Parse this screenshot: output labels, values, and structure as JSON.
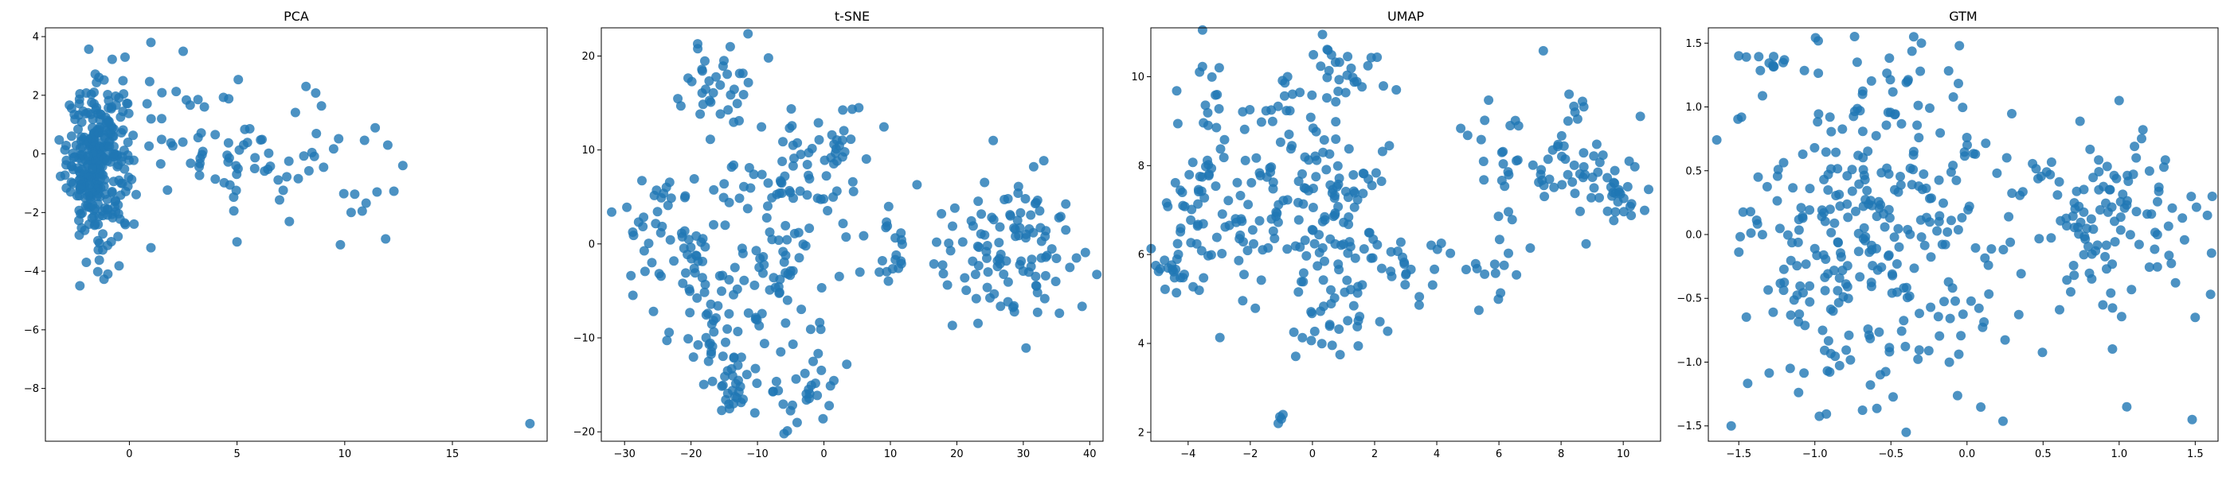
{
  "chart_data": [
    {
      "type": "scatter",
      "title": "PCA",
      "xlabel": "",
      "ylabel": "",
      "xlim": [
        -3.9,
        19.4
      ],
      "ylim": [
        -9.8,
        4.3
      ],
      "xticks": [
        0,
        5,
        10,
        15
      ],
      "yticks": [
        4,
        2,
        0,
        -2,
        -4,
        -6,
        -8
      ],
      "tick_labels_x": [
        "0",
        "5",
        "10",
        "15"
      ],
      "tick_labels_y": [
        "4",
        "2",
        "0",
        "−2",
        "−4",
        "−6",
        "−8"
      ],
      "color": "#1f77b4",
      "grid": false,
      "clusters": [
        {
          "cx": -1.5,
          "cy": -0.3,
          "sx": 0.7,
          "sy": 1.3,
          "n": 300
        },
        {
          "cx": 4.0,
          "cy": 0.5,
          "sx": 2.5,
          "sy": 1.0,
          "n": 70
        },
        {
          "cx": 8.0,
          "cy": -1.0,
          "sx": 2.0,
          "sy": 1.2,
          "n": 20
        }
      ],
      "points": [
        [
          -2.3,
          -4.5
        ],
        [
          -2.0,
          -3.7
        ],
        [
          18.6,
          -9.2
        ],
        [
          12.7,
          -0.4
        ],
        [
          12.0,
          0.3
        ],
        [
          11.9,
          -2.9
        ],
        [
          10.3,
          -2.0
        ],
        [
          9.8,
          -3.1
        ],
        [
          1.0,
          3.8
        ],
        [
          2.5,
          3.5
        ],
        [
          -0.2,
          3.3
        ],
        [
          -1.0,
          -4.1
        ],
        [
          5.0,
          -3.0
        ],
        [
          8.2,
          2.3
        ],
        [
          1.0,
          -3.2
        ]
      ]
    },
    {
      "type": "scatter",
      "title": "t-SNE",
      "xlabel": "",
      "ylabel": "",
      "xlim": [
        -33.5,
        42
      ],
      "ylim": [
        -21,
        23
      ],
      "xticks": [
        -30,
        -20,
        -10,
        0,
        10,
        20,
        30,
        40
      ],
      "yticks": [
        20,
        10,
        0,
        -10,
        -20
      ],
      "tick_labels_x": [
        "−30",
        "−20",
        "−10",
        "0",
        "10",
        "20",
        "30",
        "40"
      ],
      "tick_labels_y": [
        "20",
        "10",
        "0",
        "−10",
        "−20"
      ],
      "color": "#1f77b4",
      "grid": false,
      "clusters": [
        {
          "cx": -16,
          "cy": 17,
          "sx": 3.0,
          "sy": 2.5,
          "n": 35
        },
        {
          "cx": -5,
          "cy": 8,
          "sx": 4.0,
          "sy": 3.0,
          "n": 40
        },
        {
          "cx": 2,
          "cy": 10,
          "sx": 2.5,
          "sy": 3.0,
          "n": 25
        },
        {
          "cx": -22,
          "cy": 0,
          "sx": 4.5,
          "sy": 4.5,
          "n": 70
        },
        {
          "cx": -8,
          "cy": -2,
          "sx": 5.0,
          "sy": 4.5,
          "n": 70
        },
        {
          "cx": -17,
          "cy": -10,
          "sx": 3.0,
          "sy": 2.5,
          "n": 25
        },
        {
          "cx": -14,
          "cy": -15.5,
          "sx": 2.5,
          "sy": 1.3,
          "n": 25
        },
        {
          "cx": -4,
          "cy": -15,
          "sx": 3.0,
          "sy": 2.2,
          "n": 30
        },
        {
          "cx": 10,
          "cy": -1,
          "sx": 1.5,
          "sy": 2.0,
          "n": 20
        },
        {
          "cx": 28,
          "cy": 0,
          "sx": 5.5,
          "sy": 3.5,
          "n": 110
        }
      ],
      "points": [
        [
          -19,
          21.3
        ],
        [
          -6,
          -20.2
        ],
        [
          -5.5,
          -19.9
        ],
        [
          14,
          6.3
        ],
        [
          37,
          -2.5
        ],
        [
          38,
          -1.5
        ]
      ]
    },
    {
      "type": "scatter",
      "title": "UMAP",
      "xlabel": "",
      "ylabel": "",
      "xlim": [
        -5.2,
        11.2
      ],
      "ylim": [
        1.8,
        11.1
      ],
      "xticks": [
        -4,
        -2,
        0,
        2,
        4,
        6,
        8,
        10
      ],
      "yticks": [
        10,
        8,
        6,
        4,
        2
      ],
      "tick_labels_x": [
        "−4",
        "−2",
        "0",
        "2",
        "4",
        "6",
        "8",
        "10"
      ],
      "tick_labels_y": [
        "10",
        "8",
        "6",
        "4",
        "2"
      ],
      "color": "#1f77b4",
      "grid": false,
      "clusters": [
        {
          "cx": -3.5,
          "cy": 8.0,
          "sx": 0.6,
          "sy": 1.5,
          "n": 45
        },
        {
          "cx": -1.5,
          "cy": 7.0,
          "sx": 1.2,
          "sy": 1.3,
          "n": 90
        },
        {
          "cx": 0.5,
          "cy": 7.0,
          "sx": 1.0,
          "sy": 1.5,
          "n": 90
        },
        {
          "cx": 1.2,
          "cy": 9.9,
          "sx": 0.7,
          "sy": 0.4,
          "n": 25
        },
        {
          "cx": -4.5,
          "cy": 5.8,
          "sx": 0.3,
          "sy": 0.4,
          "n": 20
        },
        {
          "cx": 2.5,
          "cy": 5.6,
          "sx": 1.0,
          "sy": 0.5,
          "n": 25
        },
        {
          "cx": 0.5,
          "cy": 4.4,
          "sx": 0.5,
          "sy": 0.4,
          "n": 15
        },
        {
          "cx": 5.0,
          "cy": 5.8,
          "sx": 0.9,
          "sy": 0.5,
          "n": 20
        },
        {
          "cx": 7.5,
          "cy": 8.0,
          "sx": 1.4,
          "sy": 0.8,
          "n": 70
        },
        {
          "cx": 9.8,
          "cy": 7.5,
          "sx": 0.5,
          "sy": 0.4,
          "n": 25
        }
      ],
      "points": [
        [
          -1.1,
          2.2
        ],
        [
          -1.0,
          2.3
        ],
        [
          -0.95,
          2.4
        ],
        [
          -1.05,
          2.35
        ],
        [
          -3.0,
          10.2
        ],
        [
          -0.8,
          10.0
        ],
        [
          0.5,
          10.6
        ]
      ]
    },
    {
      "type": "scatter",
      "title": "GTM",
      "xlabel": "",
      "ylabel": "",
      "xlim": [
        -1.7,
        1.65
      ],
      "ylim": [
        -1.62,
        1.62
      ],
      "xticks": [
        -1.5,
        -1.0,
        -0.5,
        0.0,
        0.5,
        1.0,
        1.5
      ],
      "yticks": [
        1.5,
        1.0,
        0.5,
        0.0,
        -0.5,
        -1.0,
        -1.5
      ],
      "tick_labels_x": [
        "−1.5",
        "−1.0",
        "−0.5",
        "0.0",
        "0.5",
        "1.0",
        "1.5"
      ],
      "tick_labels_y": [
        "1.5",
        "1.0",
        "0.5",
        "0.0",
        "−0.5",
        "−1.0",
        "−1.5"
      ],
      "color": "#1f77b4",
      "grid": false,
      "clusters": [
        {
          "cx": -0.6,
          "cy": 0.0,
          "sx": 0.45,
          "sy": 0.75,
          "n": 330
        },
        {
          "cx": 1.0,
          "cy": 0.05,
          "sx": 0.3,
          "sy": 0.35,
          "n": 110
        },
        {
          "cx": -1.3,
          "cy": 1.35,
          "sx": 0.1,
          "sy": 0.04,
          "n": 10
        }
      ],
      "points": [
        [
          -0.35,
          1.55
        ],
        [
          -0.3,
          1.5
        ],
        [
          -0.05,
          1.48
        ],
        [
          -1.5,
          1.4
        ],
        [
          -1.55,
          -1.5
        ],
        [
          1.48,
          -1.45
        ],
        [
          1.5,
          -0.65
        ],
        [
          1.58,
          0.15
        ],
        [
          -0.4,
          -1.55
        ],
        [
          1.0,
          1.05
        ],
        [
          1.05,
          -1.35
        ]
      ]
    }
  ]
}
